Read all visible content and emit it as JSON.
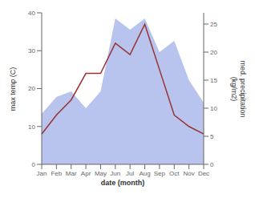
{
  "chart_data": {
    "type": "line",
    "categories": [
      "Jan",
      "Feb",
      "Mar",
      "Apr",
      "May",
      "Jun",
      "Jul",
      "Aug",
      "Sep",
      "Oct",
      "Nov",
      "Dec"
    ],
    "series": [
      {
        "type": "area",
        "color": "#b8c4ee",
        "axis": "y2",
        "values": [
          9,
          12,
          13,
          10,
          13,
          26,
          24,
          26,
          20,
          22,
          15,
          11
        ]
      },
      {
        "type": "line",
        "color": "#993333",
        "values": [
          8,
          13,
          17,
          24,
          24,
          32,
          29,
          37,
          25,
          13,
          10,
          8
        ]
      }
    ],
    "xlabel": "date (month)",
    "ylabel": "max temp (C)",
    "y2label": "med. precipitation\n(kg/m2)",
    "ylim": [
      0,
      40
    ],
    "yticks": [
      0,
      10,
      20,
      30,
      40
    ],
    "y2lim": [
      0,
      27
    ],
    "y2ticks": [
      0,
      5,
      10,
      15,
      20,
      25
    ],
    "grid": false
  }
}
